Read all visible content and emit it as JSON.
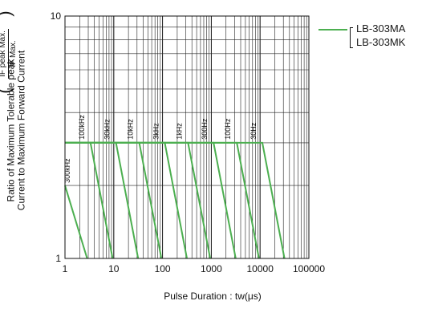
{
  "chart_data": {
    "type": "line",
    "title": "",
    "xlabel": "Pulse Duration : tw(μs)",
    "ylabel_line1": "Ratio of Maximum Tolerable peak",
    "ylabel_line2": "Current to Maximum Forward Current",
    "ylabel_fraction_numerator": "IF peak Max.",
    "ylabel_fraction_denominator": "IF Max.",
    "x_scale": "log",
    "y_scale": "log",
    "xlim": [
      1,
      100000
    ],
    "ylim": [
      1,
      10
    ],
    "x_ticks": [
      "1",
      "10",
      "100",
      "1000",
      "10000",
      "100000"
    ],
    "y_ticks": [
      "1",
      "10"
    ],
    "grid": true,
    "legend_position": "top-right outside",
    "series_color": "#4caf50",
    "series": [
      {
        "name": "300kHz",
        "x": [
          1,
          2.84
        ],
        "y": [
          2.0,
          1.0
        ]
      },
      {
        "name": "100kHz",
        "x": [
          1,
          3.33,
          9.5
        ],
        "y": [
          3.0,
          3.0,
          1.0
        ]
      },
      {
        "name": "30kHz",
        "x": [
          1,
          11.1,
          31.6
        ],
        "y": [
          3.0,
          3.0,
          1.0
        ]
      },
      {
        "name": "10kHz",
        "x": [
          1,
          33.3,
          94.9
        ],
        "y": [
          3.0,
          3.0,
          1.0
        ]
      },
      {
        "name": "3kHz",
        "x": [
          1,
          111,
          316
        ],
        "y": [
          3.0,
          3.0,
          1.0
        ]
      },
      {
        "name": "1kHz",
        "x": [
          1,
          333,
          949
        ],
        "y": [
          3.0,
          3.0,
          1.0
        ]
      },
      {
        "name": "300Hz",
        "x": [
          1,
          1110,
          3160
        ],
        "y": [
          3.0,
          3.0,
          1.0
        ]
      },
      {
        "name": "100Hz",
        "x": [
          1,
          3330,
          9490
        ],
        "y": [
          3.0,
          3.0,
          1.0
        ]
      },
      {
        "name": "30Hz",
        "x": [
          1,
          11100,
          31600
        ],
        "y": [
          3.0,
          3.0,
          1.0
        ]
      }
    ],
    "curve_labels": [
      "300kHz",
      "100kHz",
      "30kHz",
      "10kHz",
      "3kHz",
      "1kHz",
      "300Hz",
      "100Hz",
      "30Hz"
    ]
  },
  "legend": {
    "items": [
      "LB-303MA",
      "LB-303MK"
    ]
  }
}
